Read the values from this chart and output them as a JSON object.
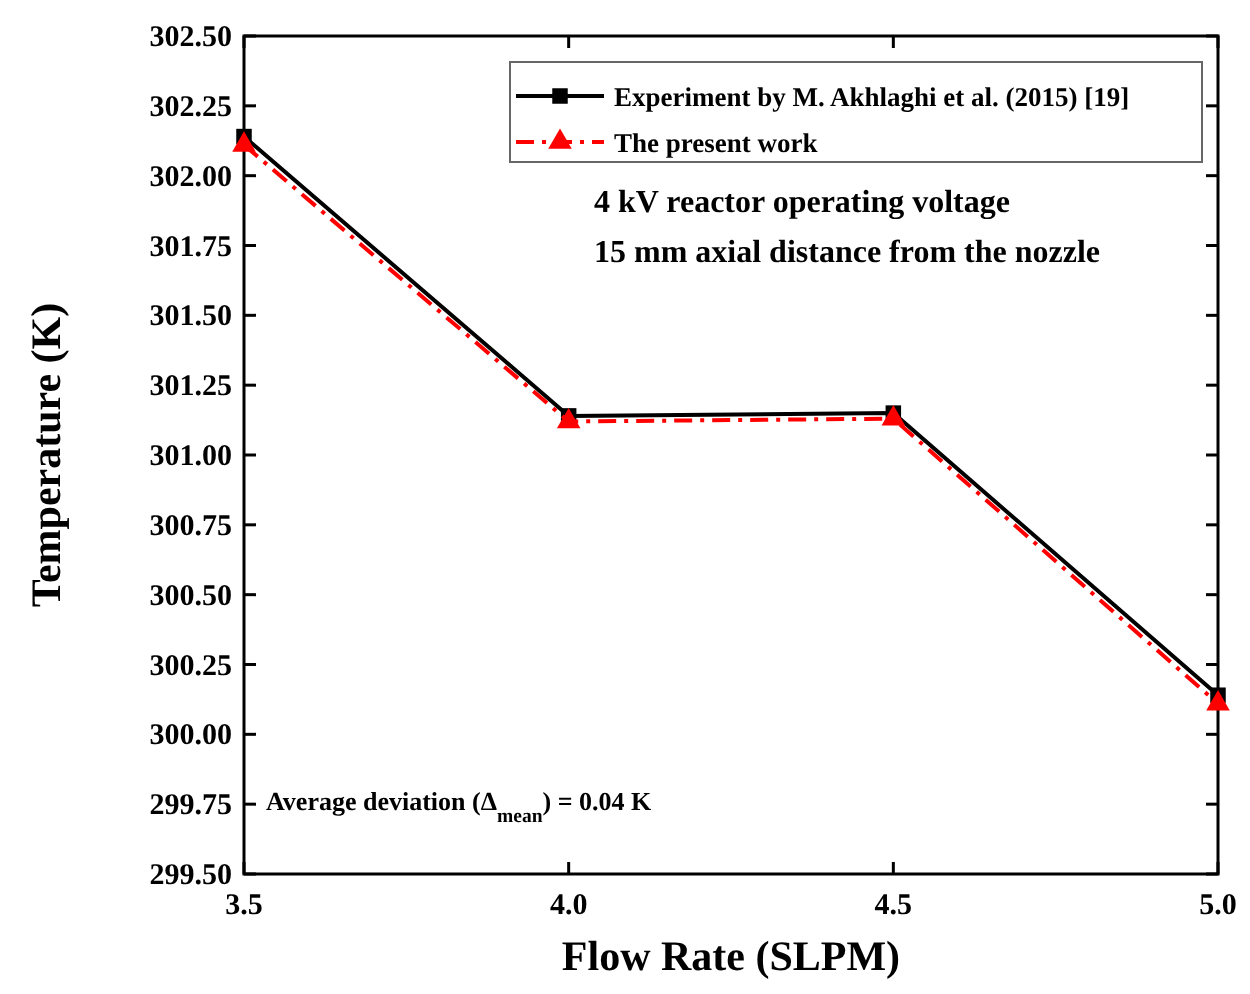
{
  "chart_data": {
    "type": "line",
    "xlabel": "Flow Rate (SLPM)",
    "ylabel": "Temperature (K)",
    "x": [
      3.5,
      4.0,
      4.5,
      5.0
    ],
    "series": [
      {
        "name": "Experiment by M. Akhlaghi et al. (2015) [19]",
        "color": "#000000",
        "values": [
          302.14,
          301.14,
          301.15,
          300.14
        ],
        "marker": "square",
        "line_style": "solid"
      },
      {
        "name": "The present work",
        "color": "#ff0000",
        "values": [
          302.11,
          301.12,
          301.13,
          300.11
        ],
        "marker": "triangle",
        "line_style": "dashdot"
      }
    ],
    "xlim": [
      3.5,
      5.0
    ],
    "xticks": [
      3.5,
      {
        "value": 4,
        "label": "4.0"
      },
      4.5,
      {
        "value": 5,
        "label": "5.0"
      }
    ],
    "ylim": [
      299.5,
      302.5
    ],
    "yticks": [
      {
        "value": 299.5,
        "label": "299.50"
      },
      299.75,
      {
        "value": 300,
        "label": "300.00"
      },
      300.25,
      {
        "value": 300.5,
        "label": "300.50"
      },
      300.75,
      {
        "value": 301,
        "label": "301.00"
      },
      301.25,
      {
        "value": 301.5,
        "label": "301.50"
      },
      301.75,
      {
        "value": 302,
        "label": "302.00"
      },
      302.25,
      {
        "value": 302.5,
        "label": "302.50"
      }
    ],
    "legend": "top right",
    "grid": false,
    "annotations": [
      "4 kV reactor operating voltage",
      "15 mm axial distance from the nozzle",
      "Average deviation (Δ$_{mean}$) = 0.04 K"
    ]
  }
}
